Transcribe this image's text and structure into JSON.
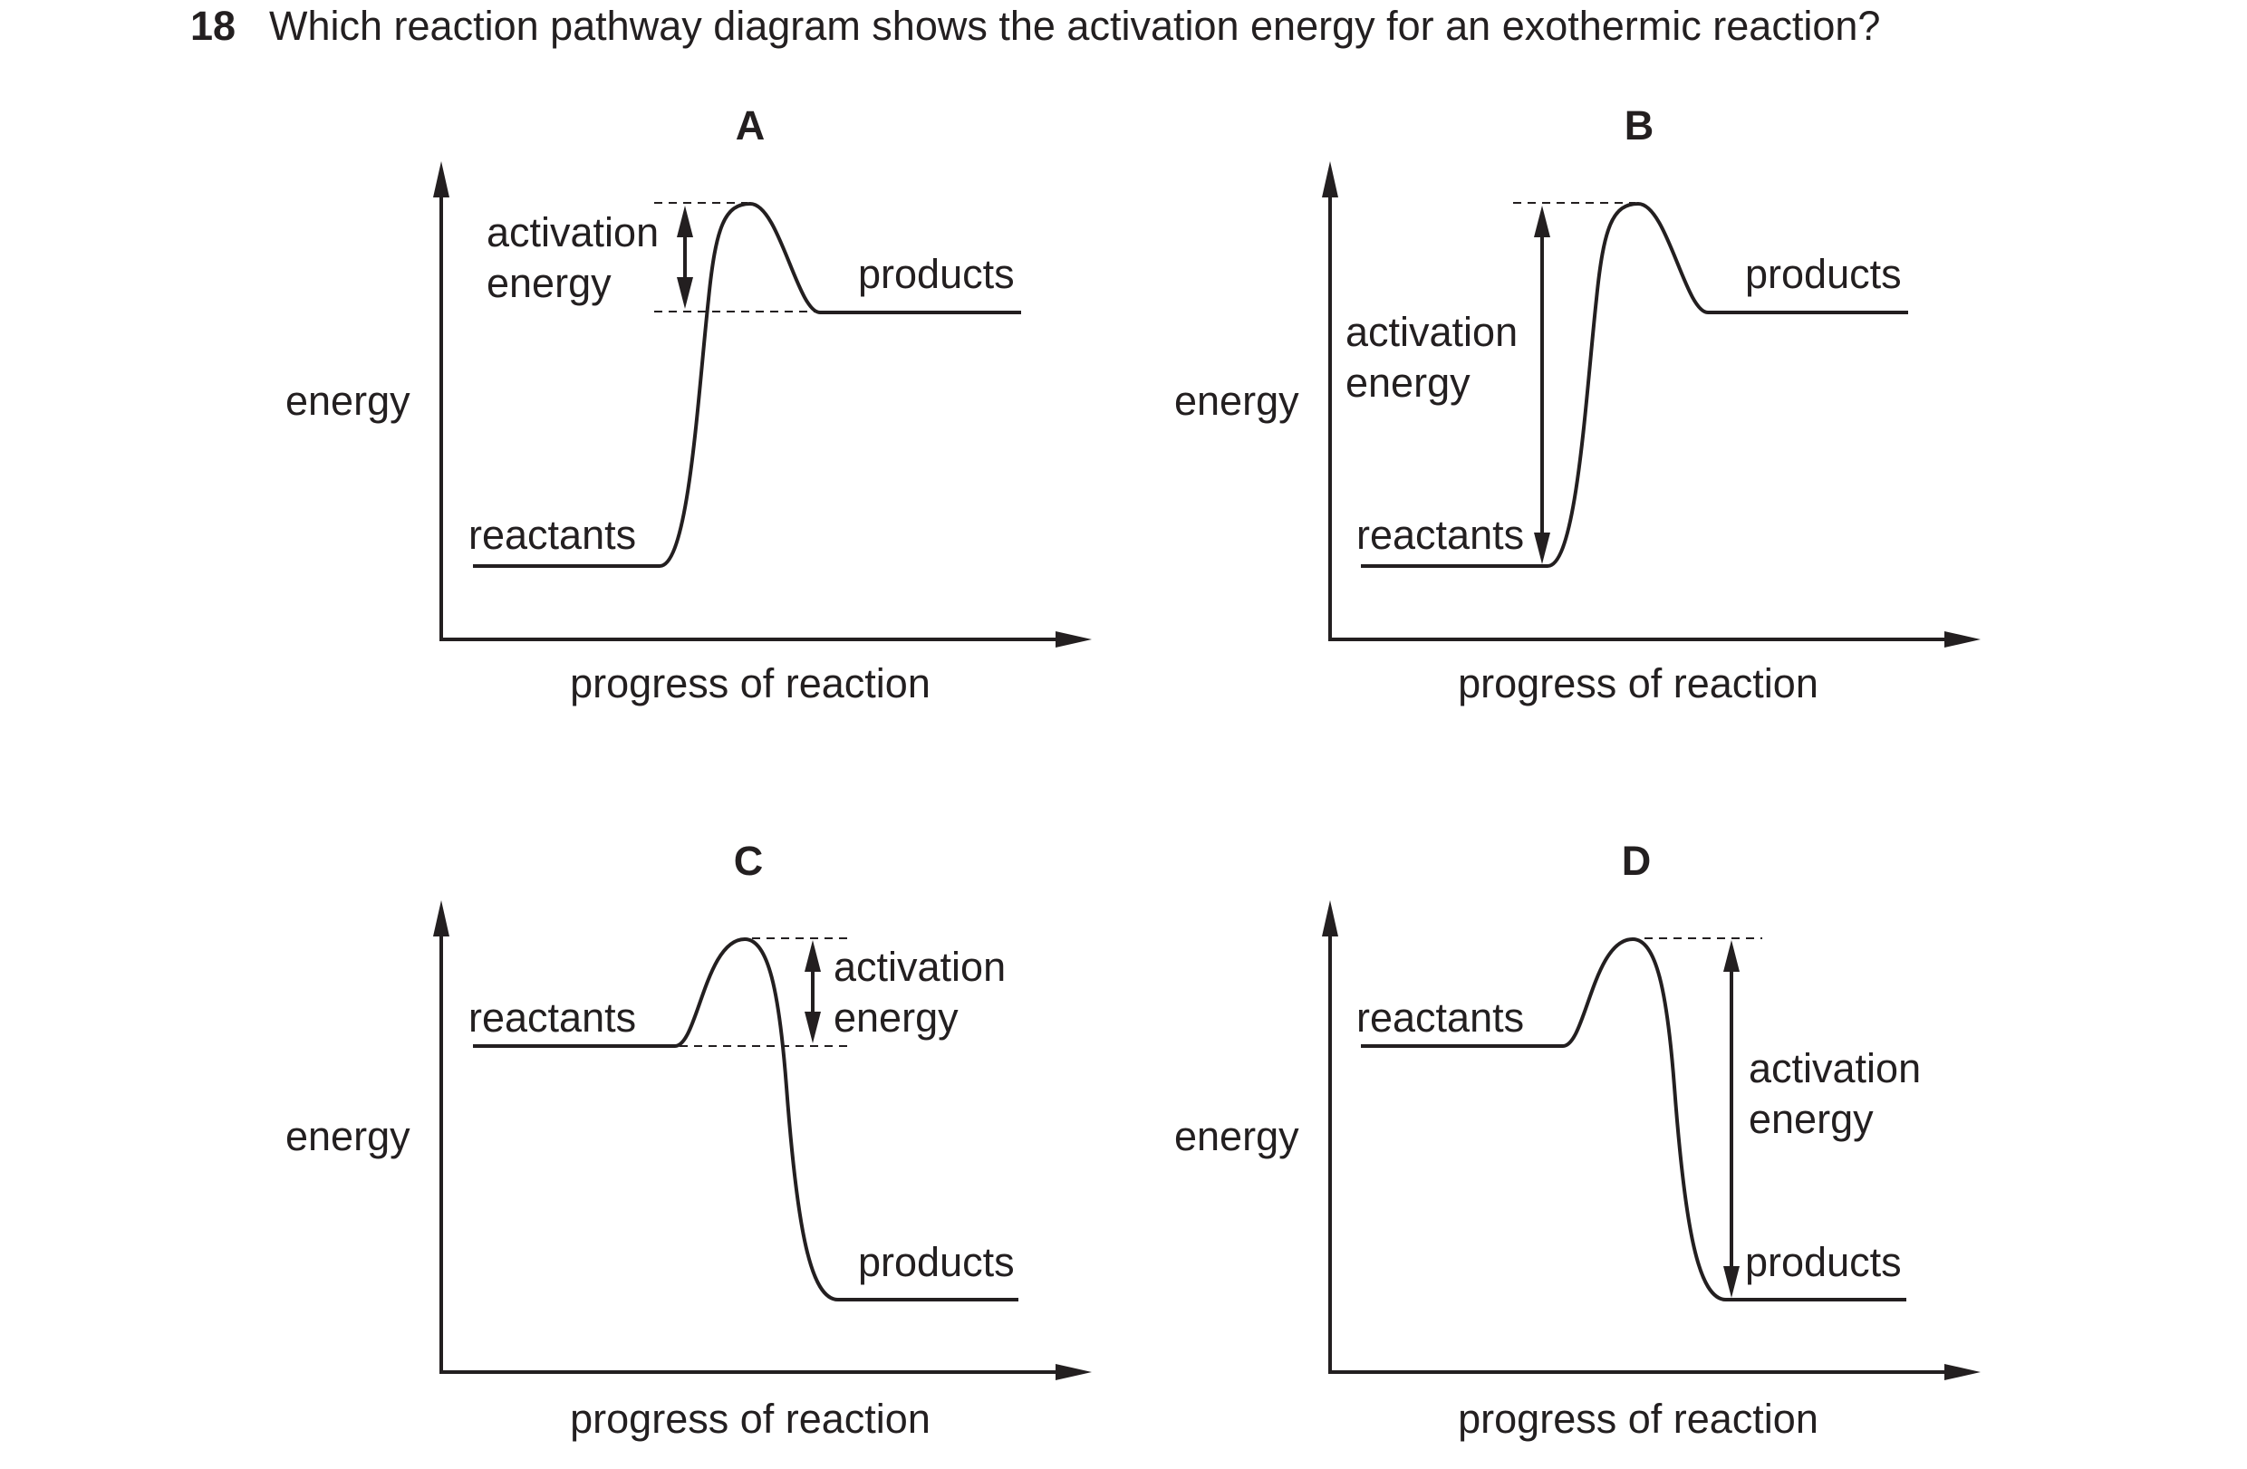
{
  "question": {
    "number": "18",
    "text": "Which reaction pathway diagram shows the activation energy for an exothermic reaction?"
  },
  "options": [
    {
      "letter": "A",
      "y_axis_label": "energy",
      "x_axis_label": "progress of reaction",
      "reactants_label": "reactants",
      "products_label": "products",
      "activation_label_line1": "activation",
      "activation_label_line2": "energy"
    },
    {
      "letter": "B",
      "y_axis_label": "energy",
      "x_axis_label": "progress of reaction",
      "reactants_label": "reactants",
      "products_label": "products",
      "activation_label_line1": "activation",
      "activation_label_line2": "energy"
    },
    {
      "letter": "C",
      "y_axis_label": "energy",
      "x_axis_label": "progress of reaction",
      "reactants_label": "reactants",
      "products_label": "products",
      "activation_label_line1": "activation",
      "activation_label_line2": "energy"
    },
    {
      "letter": "D",
      "y_axis_label": "energy",
      "x_axis_label": "progress of reaction",
      "reactants_label": "reactants",
      "products_label": "products",
      "activation_label_line1": "activation",
      "activation_label_line2": "energy"
    }
  ]
}
